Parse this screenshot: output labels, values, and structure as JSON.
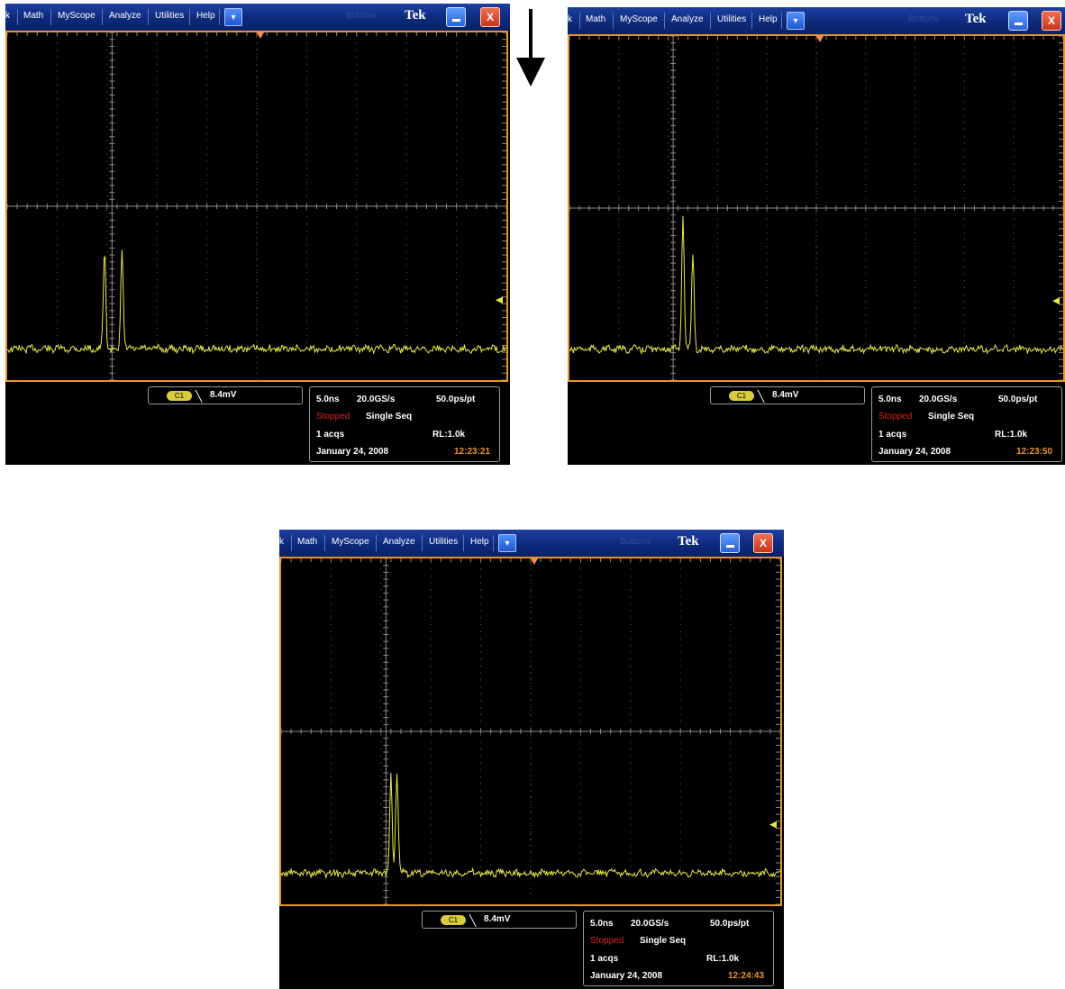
{
  "screenshots": [
    {
      "menu": [
        "k",
        "Math",
        "MyScope",
        "Analyze",
        "Utilities",
        "Help"
      ],
      "dropdown_glyph": "▾",
      "ghost_text": "Buttons",
      "brand": "Tek",
      "close_glyph": "X",
      "trigger": {
        "channel": "C1",
        "slope_glyph": "╲",
        "level": "8.4mV"
      },
      "info": {
        "time_per_div": "5.0ns",
        "sample_rate": "20.0GS/s",
        "resolution": "50.0ps/pt",
        "state": "Stopped",
        "mode": "Single Seq",
        "acqs": "1 acqs",
        "record_length": "RL:1.0k",
        "date": "January 24, 2008",
        "time": "12:23:21"
      },
      "waveform": {
        "baseline": 0.0,
        "peaks": [
          {
            "t_div": -3.05,
            "amplitude_div": 2.8
          },
          {
            "t_div": -2.7,
            "amplitude_div": 2.8
          }
        ]
      }
    },
    {
      "menu": [
        "k",
        "Math",
        "MyScope",
        "Analyze",
        "Utilities",
        "Help"
      ],
      "dropdown_glyph": "▾",
      "ghost_text": "Buttons",
      "brand": "Tek",
      "close_glyph": "X",
      "trigger": {
        "channel": "C1",
        "slope_glyph": "╲",
        "level": "8.4mV"
      },
      "info": {
        "time_per_div": "5.0ns",
        "sample_rate": "20.0GS/s",
        "resolution": "50.0ps/pt",
        "state": "Stopped",
        "mode": "Single Seq",
        "acqs": "1 acqs",
        "record_length": "RL:1.0k",
        "date": "January 24, 2008",
        "time": "12:23:50"
      },
      "waveform": {
        "baseline": 0.0,
        "peaks": [
          {
            "t_div": -2.7,
            "amplitude_div": 3.9
          },
          {
            "t_div": -2.5,
            "amplitude_div": 2.8
          }
        ]
      }
    },
    {
      "menu": [
        "k",
        "Math",
        "MyScope",
        "Analyze",
        "Utilities",
        "Help"
      ],
      "dropdown_glyph": "▾",
      "ghost_text": "Buttons",
      "brand": "Tek",
      "close_glyph": "X",
      "trigger": {
        "channel": "C1",
        "slope_glyph": "╲",
        "level": "8.4mV"
      },
      "info": {
        "time_per_div": "5.0ns",
        "sample_rate": "20.0GS/s",
        "resolution": "50.0ps/pt",
        "state": "Stopped",
        "mode": "Single Seq",
        "acqs": "1 acqs",
        "record_length": "RL:1.0k",
        "date": "January 24, 2008",
        "time": "12:24:43"
      },
      "waveform": {
        "baseline": 0.0,
        "peaks": [
          {
            "t_div": -2.8,
            "amplitude_div": 2.8
          },
          {
            "t_div": -2.68,
            "amplitude_div": 3.0
          }
        ]
      }
    }
  ],
  "colors": {
    "trace": "#e8e84a",
    "frame": "#e8942c",
    "stopped": "#e02020",
    "time": "#e8942c"
  }
}
